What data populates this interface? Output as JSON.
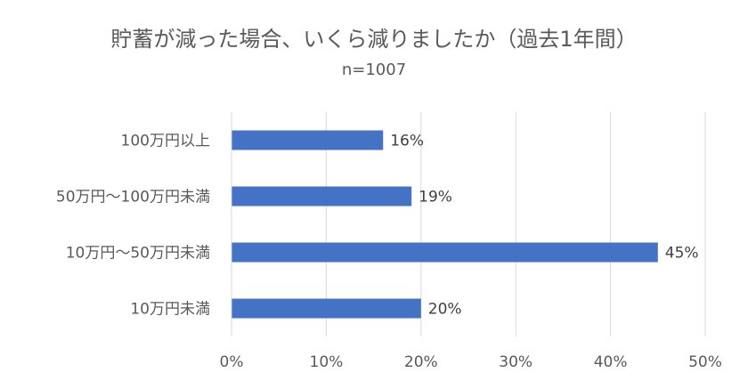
{
  "chart_data": {
    "type": "bar",
    "orientation": "horizontal",
    "title": "貯蓄が減った場合、いくら減りましたか（過去1年間）",
    "subtitle": "n=1007",
    "categories": [
      "100万円以上",
      "50万円〜100万円未満",
      "10万円〜50万円未満",
      "10万円未満"
    ],
    "series": [
      {
        "values": [
          16,
          19,
          45,
          20
        ]
      }
    ],
    "data_labels": [
      "16%",
      "19%",
      "45%",
      "20%"
    ],
    "xlim": [
      0,
      50
    ],
    "x_ticks": [
      0,
      10,
      20,
      30,
      40,
      50
    ],
    "x_tick_labels": [
      "0%",
      "10%",
      "20%",
      "30%",
      "40%",
      "50%"
    ],
    "xlabel": "",
    "ylabel": "",
    "grid": "vertical",
    "legend": "none",
    "colors": {
      "bar": "#4472C4",
      "grid": "#D9D9D9",
      "text": "#595959"
    }
  }
}
